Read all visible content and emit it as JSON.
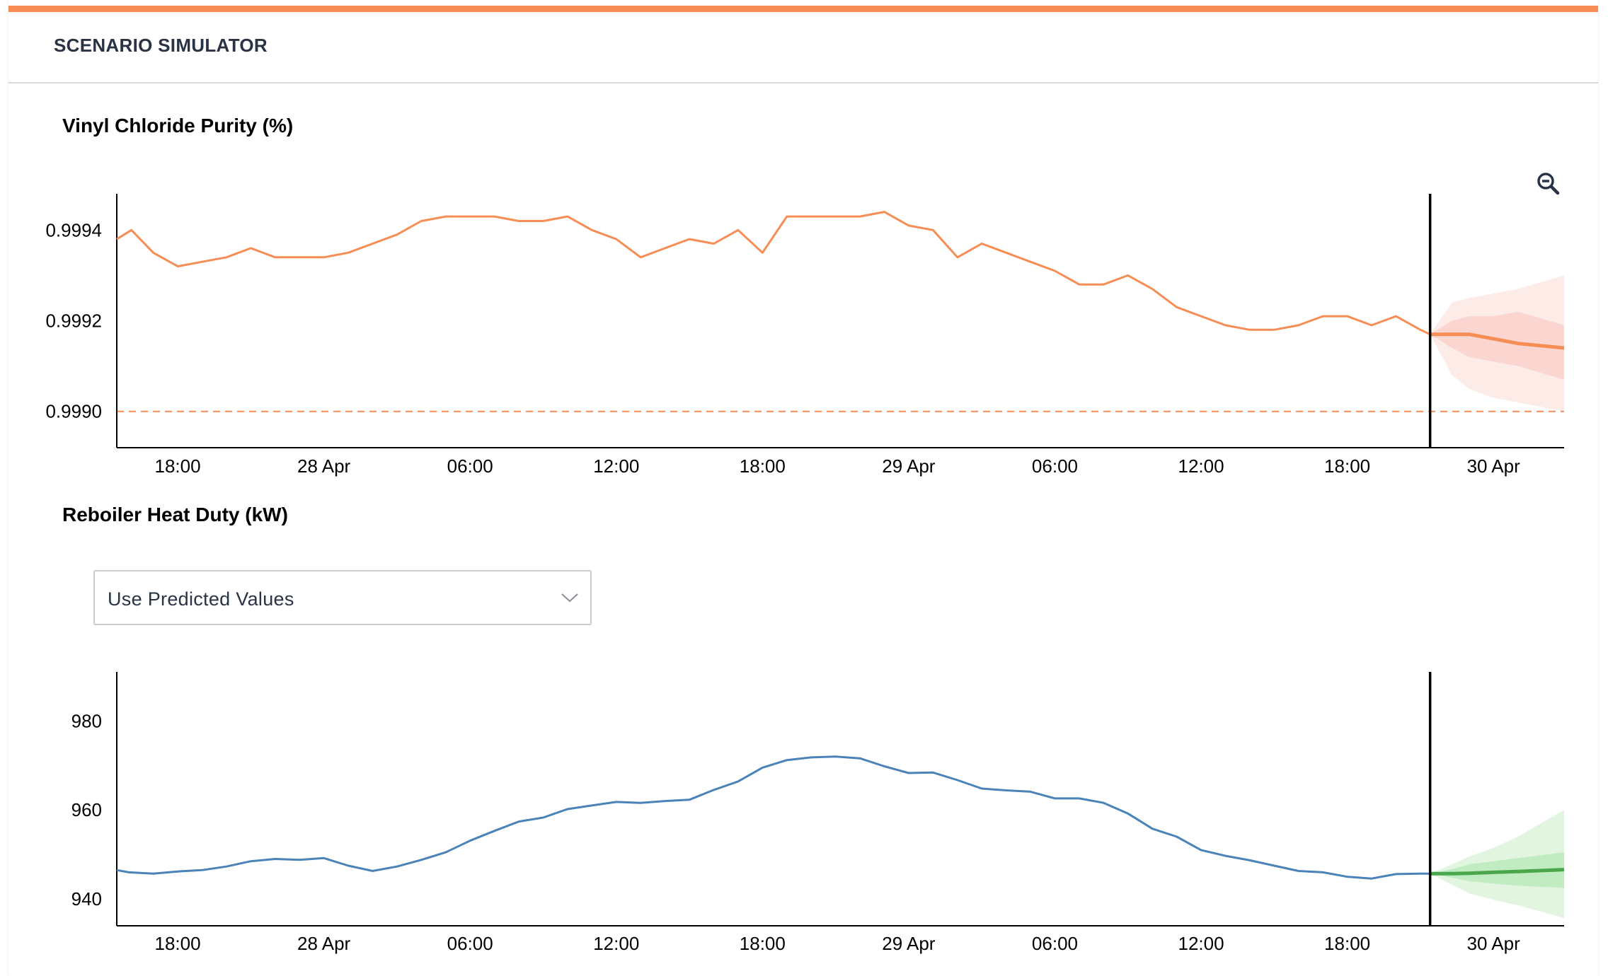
{
  "header": {
    "title": "SCENARIO SIMULATOR"
  },
  "colors": {
    "accent": "#f68d55",
    "purity_line": "#f68d55",
    "purity_forecast_band": "#f9c5bd",
    "heat_line": "#4a83b8",
    "heat_forecast_line": "#4aa64a",
    "heat_forecast_band": "#a8e3a8",
    "divider_line": "#000000"
  },
  "icons": {
    "zoom_out": "zoom-out-icon",
    "dropdown": "chevron-down-icon"
  },
  "scenario_input": {
    "selected": "Use Predicted Values"
  },
  "chart_data": [
    {
      "type": "line",
      "title": "Vinyl Chloride Purity (%)",
      "x_ticks": [
        "18:00",
        "28 Apr",
        "06:00",
        "12:00",
        "18:00",
        "29 Apr",
        "06:00",
        "12:00",
        "18:00",
        "30 Apr"
      ],
      "x_tick_hours": [
        -6,
        0,
        6,
        12,
        18,
        24,
        30,
        36,
        42,
        48
      ],
      "x_range_hours": [
        -8.5,
        50.9
      ],
      "y_ticks": [
        "0.9994",
        "0.9992",
        "0.9990"
      ],
      "y_tick_values": [
        0.9994,
        0.9992,
        0.999
      ],
      "ylim": [
        0.99892,
        0.99948
      ],
      "threshold": 0.999,
      "forecast_start_hour": 45.4,
      "series": [
        {
          "kind": "history",
          "x_hours": [
            -8.5,
            -7.9,
            -7,
            -6,
            -5,
            -4,
            -3,
            -2,
            -1,
            0,
            1,
            2,
            3,
            4,
            5,
            6,
            7,
            8,
            9,
            10,
            11,
            12,
            13,
            14,
            15,
            16,
            17,
            18,
            19,
            20,
            21,
            22,
            23,
            24,
            25,
            26,
            27,
            28,
            29,
            30,
            31,
            32,
            33,
            34,
            35,
            36,
            37,
            38,
            39,
            40,
            41,
            42,
            43,
            44,
            45,
            45.4
          ],
          "values": [
            0.99938,
            0.9994,
            0.99935,
            0.99932,
            0.99933,
            0.99934,
            0.99936,
            0.99934,
            0.99934,
            0.99934,
            0.99935,
            0.99937,
            0.99939,
            0.99942,
            0.99943,
            0.99943,
            0.99943,
            0.99942,
            0.99942,
            0.99943,
            0.9994,
            0.99938,
            0.99934,
            0.99936,
            0.99938,
            0.99937,
            0.9994,
            0.99935,
            0.99943,
            0.99943,
            0.99943,
            0.99943,
            0.99944,
            0.99941,
            0.9994,
            0.99934,
            0.99937,
            0.99935,
            0.99933,
            0.99931,
            0.99928,
            0.99928,
            0.9993,
            0.99927,
            0.99923,
            0.99921,
            0.99919,
            0.99918,
            0.99918,
            0.99919,
            0.99921,
            0.99921,
            0.99919,
            0.99921,
            0.99918,
            0.99917
          ]
        },
        {
          "kind": "forecast",
          "x_hours": [
            45.4,
            46.3,
            47,
            48,
            49,
            50.9
          ],
          "values": [
            0.99917,
            0.99917,
            0.99917,
            0.99916,
            0.99915,
            0.99914
          ],
          "band_inner_upper": [
            0.99917,
            0.9992,
            0.99921,
            0.99921,
            0.99922,
            0.99919
          ],
          "band_inner_lower": [
            0.99917,
            0.99914,
            0.99912,
            0.99911,
            0.9991,
            0.99907
          ],
          "band_outer_upper": [
            0.99917,
            0.99924,
            0.99925,
            0.99926,
            0.99927,
            0.9993
          ],
          "band_outer_lower": [
            0.99917,
            0.99908,
            0.99905,
            0.99903,
            0.99902,
            0.999
          ]
        }
      ]
    },
    {
      "type": "line",
      "title": "Reboiler Heat Duty (kW)",
      "x_ticks": [
        "18:00",
        "28 Apr",
        "06:00",
        "12:00",
        "18:00",
        "29 Apr",
        "06:00",
        "12:00",
        "18:00",
        "30 Apr"
      ],
      "x_tick_hours": [
        -6,
        0,
        6,
        12,
        18,
        24,
        30,
        36,
        42,
        48
      ],
      "x_range_hours": [
        -8.5,
        50.9
      ],
      "y_ticks": [
        "980",
        "960",
        "940"
      ],
      "y_tick_values": [
        980,
        960,
        940
      ],
      "ylim": [
        934,
        991
      ],
      "forecast_start_hour": 45.4,
      "series": [
        {
          "kind": "history",
          "x_hours": [
            -8.5,
            -8,
            -7,
            -6,
            -5,
            -4,
            -3,
            -2,
            -1,
            0,
            1,
            2,
            3,
            4,
            5,
            6,
            7,
            8,
            9,
            10,
            11,
            12,
            13,
            14,
            15,
            16,
            17,
            18,
            19,
            20,
            21,
            22,
            23,
            24,
            25,
            26,
            27,
            28,
            29,
            30,
            31,
            32,
            33,
            34,
            35,
            36,
            37,
            38,
            39,
            40,
            41,
            42,
            43,
            44,
            45,
            45.4
          ],
          "values": [
            946.5,
            946,
            945.7,
            946.2,
            946.5,
            947.3,
            948.5,
            949,
            948.8,
            949.2,
            947.5,
            946.3,
            947.3,
            948.8,
            950.5,
            953.1,
            955.3,
            957.4,
            958.3,
            960.2,
            961,
            961.8,
            961.6,
            962,
            962.3,
            964.5,
            966.4,
            969.5,
            971.2,
            971.8,
            972,
            971.6,
            969.8,
            968.3,
            968.4,
            966.7,
            964.8,
            964.4,
            964.1,
            962.6,
            962.6,
            961.6,
            959.2,
            955.8,
            954,
            951,
            949.7,
            948.7,
            947.5,
            946.3,
            946,
            945,
            944.6,
            945.6,
            945.7,
            945.7
          ]
        },
        {
          "kind": "forecast",
          "x_hours": [
            45.4,
            46.3,
            47,
            48,
            49,
            50.9
          ],
          "values": [
            945.7,
            945.7,
            945.8,
            946,
            946.2,
            946.6
          ],
          "band_inner_upper": [
            945.7,
            946.7,
            947.8,
            948.5,
            949.2,
            950.5
          ],
          "band_inner_lower": [
            945.7,
            944.8,
            944,
            943.5,
            943,
            942.5
          ],
          "band_outer_upper": [
            945.7,
            947.8,
            949.5,
            951.5,
            954,
            960
          ],
          "band_outer_lower": [
            945.7,
            943.2,
            941.3,
            939.8,
            938.6,
            935.8
          ]
        }
      ]
    }
  ]
}
